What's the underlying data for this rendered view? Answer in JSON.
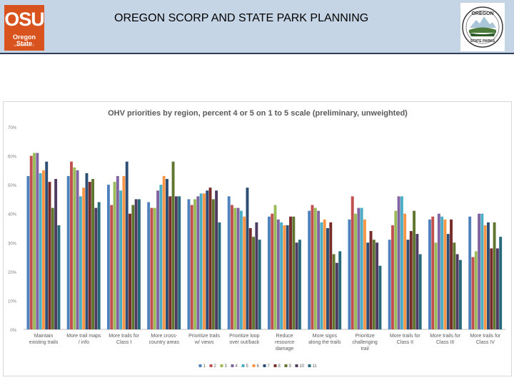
{
  "header": {
    "title": "OREGON SCORP AND STATE PARK PLANNING",
    "osu_logo": {
      "big": "OSU",
      "name": "Oregon State",
      "tagline": "UNIVERSITY"
    },
    "parks_logo": {
      "top_text": "OREGON",
      "bottom_text": "STATE PARKS"
    }
  },
  "chart_data": {
    "type": "bar",
    "title": "OHV priorities by region, percent 4 or 5 on 1 to 5 scale (preliminary, unweighted)",
    "xlabel": "",
    "ylabel": "",
    "ylim": [
      0,
      70
    ],
    "yticks": [
      "0%",
      "10%",
      "20%",
      "30%",
      "40%",
      "50%",
      "60%",
      "70%"
    ],
    "grid": false,
    "legend_position": "bottom",
    "categories": [
      [
        "Maintain",
        "existing trails"
      ],
      [
        "More trail maps",
        "/ info"
      ],
      [
        "More trails for",
        "Class I"
      ],
      [
        "More cross-",
        "country areas"
      ],
      [
        "Prioritize trails",
        "w/ views"
      ],
      [
        "Prioritize loop",
        "over out/back"
      ],
      [
        "Reduce",
        "resource",
        "damage"
      ],
      [
        "More signs",
        "along the trails"
      ],
      [
        "Prioritize",
        "challenging",
        "trail"
      ],
      [
        "More trails for",
        "Class II"
      ],
      [
        "More trails for",
        "Class III"
      ],
      [
        "More trails for",
        "Class IV"
      ]
    ],
    "series": [
      {
        "name": "1",
        "color": "#4f81bd",
        "values": [
          53,
          53,
          50,
          44,
          45,
          46,
          39,
          41,
          38,
          31,
          38,
          39
        ]
      },
      {
        "name": "2",
        "color": "#c0504d",
        "values": [
          60,
          58,
          43,
          42,
          43,
          43,
          40,
          43,
          46,
          36,
          39,
          25
        ]
      },
      {
        "name": "3",
        "color": "#9bbb59",
        "values": [
          61,
          56,
          51,
          42,
          45,
          42,
          43,
          42,
          40,
          41,
          30,
          27
        ]
      },
      {
        "name": "4",
        "color": "#8064a2",
        "values": [
          61,
          55,
          53,
          48,
          46,
          42,
          38,
          41,
          42,
          46,
          40,
          40
        ]
      },
      {
        "name": "5",
        "color": "#4bacc6",
        "values": [
          54,
          46,
          48,
          50,
          47,
          41,
          37,
          37,
          42,
          46,
          39,
          40
        ]
      },
      {
        "name": "6",
        "color": "#f79646",
        "values": [
          55,
          49,
          53,
          53,
          47,
          39,
          36,
          38,
          38,
          40,
          38,
          36
        ]
      },
      {
        "name": "7",
        "color": "#2c4d75",
        "values": [
          58,
          54,
          58,
          52,
          48,
          49,
          36,
          35,
          30,
          31,
          33,
          37
        ]
      },
      {
        "name": "8",
        "color": "#772c2a",
        "values": [
          51,
          51,
          40,
          46,
          49,
          35,
          39,
          37,
          34,
          34,
          38,
          28
        ]
      },
      {
        "name": "9",
        "color": "#5f7530",
        "values": [
          42,
          52,
          43,
          58,
          45,
          32,
          39,
          26,
          31,
          41,
          30,
          37
        ]
      },
      {
        "name": "10",
        "color": "#4d3b62",
        "values": [
          52,
          42,
          45,
          46,
          48,
          37,
          30,
          23,
          30,
          33,
          26,
          28
        ]
      },
      {
        "name": "11",
        "color": "#276a7c",
        "values": [
          36,
          44,
          45,
          46,
          37,
          31,
          31,
          27,
          22,
          26,
          24,
          32
        ]
      }
    ]
  }
}
